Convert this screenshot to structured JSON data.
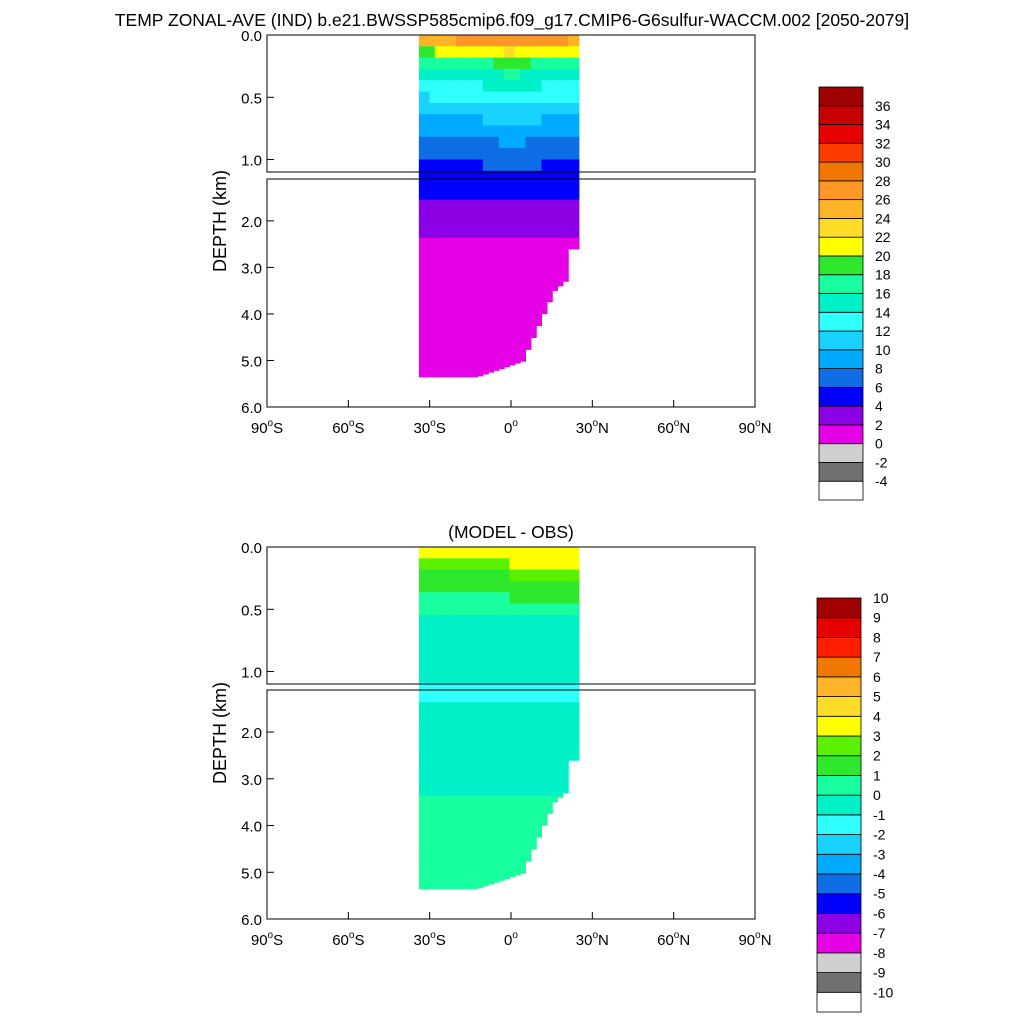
{
  "figure": {
    "title": "TEMP ZONAL-AVE (IND) b.e21.BWSSP585cmip6.f09_g17.CMIP6-G6sulfur-WACCM.002 [2050-2079]"
  },
  "chart_data": [
    {
      "type": "heatmap",
      "title": "",
      "xlabel": "",
      "ylabel": "DEPTH (km)",
      "xlim": [
        -90,
        90
      ],
      "x_ticks": [
        {
          "value": -90,
          "main": "90",
          "sup": "o",
          "suffix": "S"
        },
        {
          "value": -60,
          "main": "60",
          "sup": "o",
          "suffix": "S"
        },
        {
          "value": -30,
          "main": "30",
          "sup": "o",
          "suffix": "S"
        },
        {
          "value": 0,
          "main": "0",
          "sup": "o",
          "suffix": ""
        },
        {
          "value": 30,
          "main": "30",
          "sup": "o",
          "suffix": "N"
        },
        {
          "value": 60,
          "main": "60",
          "sup": "o",
          "suffix": "N"
        },
        {
          "value": 90,
          "main": "90",
          "sup": "o",
          "suffix": "N"
        }
      ],
      "upper_panel": {
        "ylim": [
          0,
          1.1
        ],
        "y_ticks": [
          "0.0",
          "0.5",
          "1.0"
        ],
        "y_tick_values": [
          0,
          0.5,
          1.0
        ]
      },
      "lower_panel": {
        "ylim": [
          1.1,
          6.0
        ],
        "y_ticks": [
          "2.0",
          "3.0",
          "4.0",
          "5.0",
          "6.0"
        ],
        "y_tick_values": [
          2,
          3,
          4,
          5,
          6
        ]
      },
      "domain_lat_range": [
        -34,
        25
      ],
      "colorbar": {
        "levels": [
          -4,
          -2,
          0,
          2,
          4,
          6,
          8,
          10,
          12,
          14,
          16,
          18,
          20,
          22,
          24,
          26,
          28,
          30,
          32,
          34,
          36
        ],
        "labels": [
          "-4",
          "-2",
          "0",
          "2",
          "4",
          "6",
          "8",
          "10",
          "12",
          "14",
          "16",
          "18",
          "20",
          "22",
          "24",
          "26",
          "28",
          "30",
          "32",
          "34",
          "36"
        ],
        "colors": [
          "#ffffff",
          "#707070",
          "#cfcfcf",
          "#e600e6",
          "#8c00e6",
          "#0000ff",
          "#0f6ee6",
          "#00aaff",
          "#18d2ff",
          "#30ffff",
          "#00f0c8",
          "#19ffa0",
          "#2ee82e",
          "#ffff00",
          "#ffdc28",
          "#ffb428",
          "#ff9628",
          "#f07800",
          "#ff3c00",
          "#e60000",
          "#c80000",
          "#a00000"
        ]
      },
      "profile": {
        "depth_km": [
          0,
          0.05,
          0.1,
          0.15,
          0.2,
          0.3,
          0.4,
          0.5,
          0.6,
          0.7,
          0.8,
          0.9,
          1.0,
          1.2,
          1.5,
          2.0,
          2.5,
          3.0,
          4.0,
          5.0,
          5.5
        ],
        "temp_degC": [
          27,
          25,
          22,
          19,
          17,
          14.5,
          13,
          12,
          10.5,
          9,
          8,
          7,
          6,
          5,
          4,
          2.5,
          1.8,
          1.5,
          1.2,
          1.0,
          1.0
        ]
      }
    },
    {
      "type": "heatmap",
      "title": "(MODEL - OBS)",
      "xlabel": "",
      "ylabel": "DEPTH (km)",
      "xlim": [
        -90,
        90
      ],
      "x_ticks": [
        {
          "value": -90,
          "main": "90",
          "sup": "o",
          "suffix": "S"
        },
        {
          "value": -60,
          "main": "60",
          "sup": "o",
          "suffix": "S"
        },
        {
          "value": -30,
          "main": "30",
          "sup": "o",
          "suffix": "S"
        },
        {
          "value": 0,
          "main": "0",
          "sup": "o",
          "suffix": ""
        },
        {
          "value": 30,
          "main": "30",
          "sup": "o",
          "suffix": "N"
        },
        {
          "value": 60,
          "main": "60",
          "sup": "o",
          "suffix": "N"
        },
        {
          "value": 90,
          "main": "90",
          "sup": "o",
          "suffix": "N"
        }
      ],
      "upper_panel": {
        "ylim": [
          0,
          1.1
        ],
        "y_ticks": [
          "0.0",
          "0.5",
          "1.0"
        ],
        "y_tick_values": [
          0,
          0.5,
          1.0
        ]
      },
      "lower_panel": {
        "ylim": [
          1.1,
          6.0
        ],
        "y_ticks": [
          "2.0",
          "3.0",
          "4.0",
          "5.0",
          "6.0"
        ],
        "y_tick_values": [
          2,
          3,
          4,
          5,
          6
        ]
      },
      "domain_lat_range": [
        -34,
        25
      ],
      "colorbar": {
        "levels": [
          -10,
          -9,
          -8,
          -7,
          -6,
          -5,
          -4,
          -3,
          -2,
          -1,
          0,
          1,
          2,
          3,
          4,
          5,
          6,
          7,
          8,
          9,
          10
        ],
        "labels": [
          "-10",
          "-9",
          "-8",
          "-7",
          "-6",
          "-5",
          "-4",
          "-3",
          "-2",
          "-1",
          "0",
          "1",
          "2",
          "3",
          "4",
          "5",
          "6",
          "7",
          "8",
          "9",
          "10"
        ],
        "colors": [
          "#ffffff",
          "#707070",
          "#cfcfcf",
          "#e600e6",
          "#8c00e6",
          "#0000ff",
          "#0f6ee6",
          "#00aaff",
          "#18d2ff",
          "#30ffff",
          "#00f0c8",
          "#19ffa0",
          "#2ee82e",
          "#5af000",
          "#ffff00",
          "#ffdc28",
          "#ffb428",
          "#f07800",
          "#ff1e00",
          "#e60000",
          "#a00000"
        ]
      },
      "profile": {
        "depth_km": [
          0,
          0.05,
          0.1,
          0.15,
          0.2,
          0.3,
          0.4,
          0.5,
          0.6,
          0.8,
          1.0,
          1.2,
          1.5,
          2.0,
          3.0,
          4.0,
          5.0,
          5.5
        ],
        "temp_degC": [
          3.2,
          3.6,
          3.4,
          2.8,
          2.2,
          1.6,
          0.9,
          0.3,
          -0.3,
          -0.7,
          -0.9,
          -1.1,
          -0.9,
          -0.3,
          -0.2,
          0.3,
          0.5,
          0.6
        ]
      }
    }
  ]
}
